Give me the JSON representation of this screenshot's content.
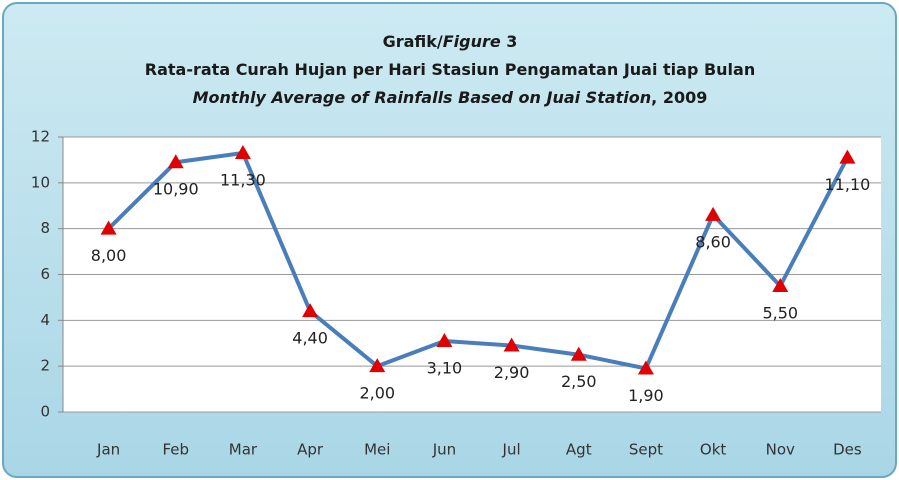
{
  "chart_data": {
    "type": "line",
    "title": [
      [
        "Grafik/",
        "Figure",
        " 3"
      ],
      [
        "Rata-rata Curah Hujan per Hari Stasiun Pengamatan Juai tiap Bulan"
      ],
      [
        "Monthly Average of Rainfalls Based on Juai Station",
        ", 2009"
      ]
    ],
    "categories": [
      "Jan",
      "Feb",
      "Mar",
      "Apr",
      "Mei",
      "Jun",
      "Jul",
      "Agt",
      "Sept",
      "Okt",
      "Nov",
      "Des"
    ],
    "series": [
      {
        "color": "#4a7ebb",
        "marker_color": "#e00000",
        "values": [
          8.0,
          10.9,
          11.3,
          4.4,
          2.0,
          3.1,
          2.9,
          2.5,
          1.9,
          8.6,
          5.5,
          11.1
        ],
        "value_labels": [
          "8,00",
          "10,90",
          "11,30",
          "4,40",
          "2,00",
          "3,10",
          "2,90",
          "2,50",
          "1,90",
          "8,60",
          "5,50",
          "11,10"
        ]
      }
    ],
    "ylim": [
      0,
      12
    ],
    "yticks": [
      0,
      2,
      4,
      6,
      8,
      10,
      12
    ],
    "grid": true
  }
}
